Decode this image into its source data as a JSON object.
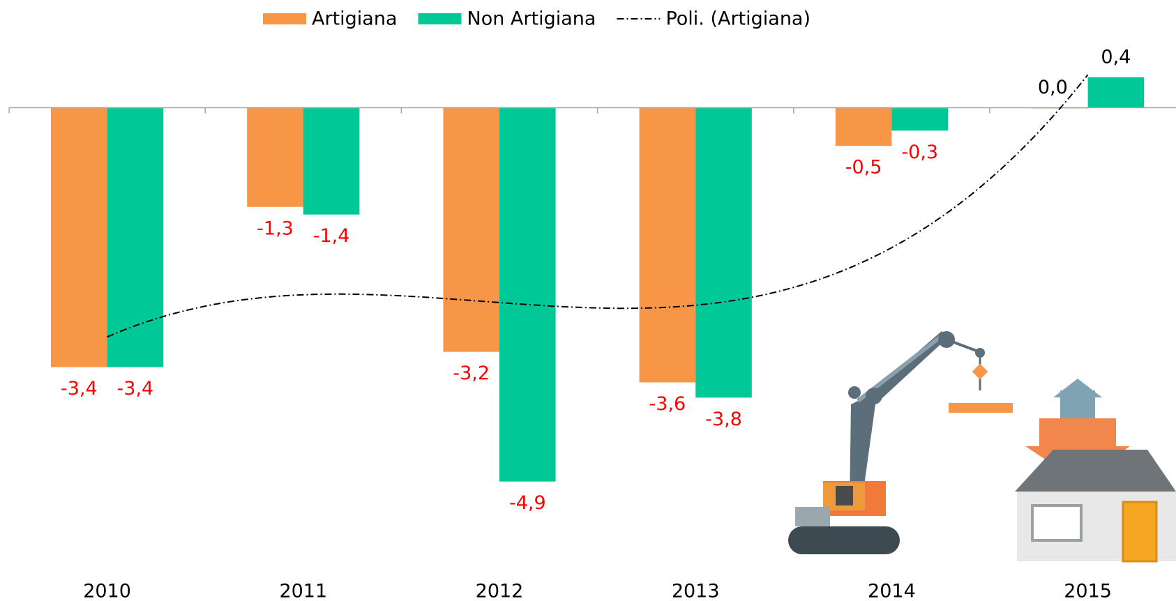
{
  "chart_data": {
    "type": "bar",
    "categories": [
      "2010",
      "2011",
      "2012",
      "2013",
      "2014",
      "2015"
    ],
    "series": [
      {
        "name": "Artigiana",
        "color": "#f79646",
        "values": [
          -3.4,
          -1.3,
          -3.2,
          -3.6,
          -0.5,
          0.0
        ],
        "value_labels": [
          "-3,4",
          "-1,3",
          "-3,2",
          "-3,6",
          "-0,5",
          "0,0"
        ]
      },
      {
        "name": "Non Artigiana",
        "color": "#00c896",
        "values": [
          -3.4,
          -1.4,
          -4.9,
          -3.8,
          -0.3,
          0.4
        ],
        "value_labels": [
          "-3,4",
          "-1,4",
          "-4,9",
          "-3,8",
          "-0,3",
          "0,4"
        ]
      }
    ],
    "trendline": {
      "name": "Poli. (Artigiana)",
      "series": 0,
      "degree": 3
    },
    "ylim": [
      -6,
      0.8
    ]
  }
}
